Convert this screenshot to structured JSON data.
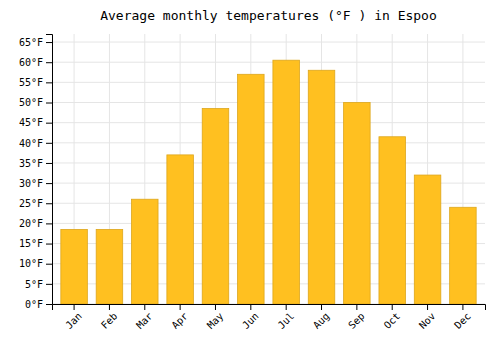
{
  "chart_data": {
    "type": "bar",
    "title": "Average monthly temperatures (°F ) in Espoo",
    "categories": [
      "Jan",
      "Feb",
      "Mar",
      "Apr",
      "May",
      "Jun",
      "Jul",
      "Aug",
      "Sep",
      "Oct",
      "Nov",
      "Dec"
    ],
    "values": [
      18.5,
      18.5,
      26,
      37,
      48.5,
      57,
      60.5,
      58,
      50,
      41.5,
      32,
      24
    ],
    "color": "#FFC020",
    "ylim": [
      0,
      67
    ],
    "yticks": [
      {
        "value": 0,
        "label": "0°F"
      },
      {
        "value": 5,
        "label": "5°F"
      },
      {
        "value": 10,
        "label": "10°F"
      },
      {
        "value": 15,
        "label": "15°F"
      },
      {
        "value": 20,
        "label": "20°F"
      },
      {
        "value": 25,
        "label": "25°F"
      },
      {
        "value": 30,
        "label": "30°F"
      },
      {
        "value": 35,
        "label": "35°F"
      },
      {
        "value": 40,
        "label": "40°F"
      },
      {
        "value": 45,
        "label": "45°F"
      },
      {
        "value": 50,
        "label": "50°F"
      },
      {
        "value": 55,
        "label": "55°F"
      },
      {
        "value": 60,
        "label": "60°F"
      },
      {
        "value": 65,
        "label": "65°F"
      }
    ],
    "grid": true
  }
}
